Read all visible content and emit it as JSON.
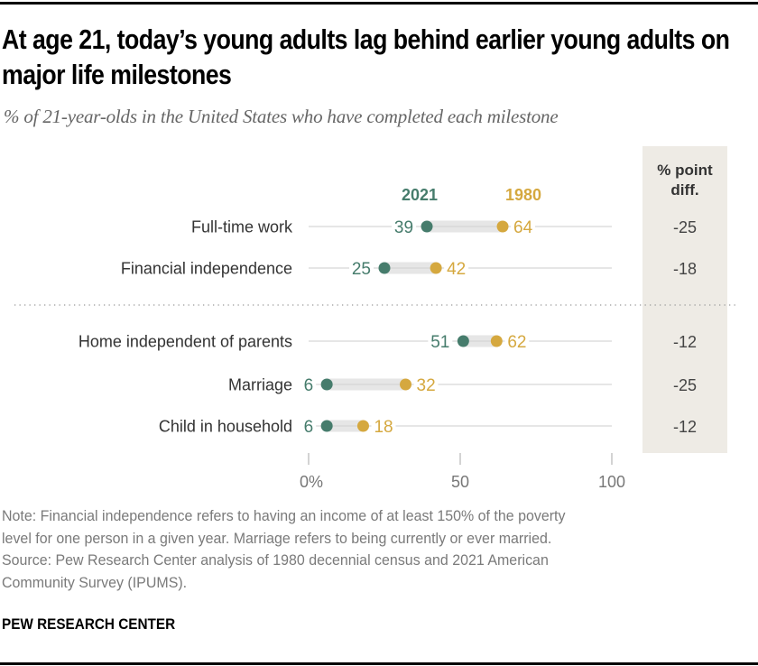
{
  "header": {
    "title": "At age 21, today’s young adults lag behind earlier young adults on major life milestones",
    "subtitle": "% of 21-year-olds in the United States who have completed each milestone"
  },
  "chart_data": {
    "type": "dot-plot",
    "title": "At age 21, today’s young adults lag behind earlier young adults on major life milestones",
    "subtitle": "% of 21-year-olds in the United States who have completed each milestone",
    "xlabel": "",
    "ylabel": "",
    "xlim": [
      0,
      100
    ],
    "x_ticks": [
      0,
      50,
      100
    ],
    "x_tick_labels": [
      "0%",
      "50",
      "100"
    ],
    "grid": false,
    "categories": [
      "Full-time work",
      "Financial independence",
      "Home independent of parents",
      "Marriage",
      "Child in household"
    ],
    "groups": [
      [
        0,
        1
      ],
      [
        2,
        3,
        4
      ]
    ],
    "series": [
      {
        "name": "2021",
        "color": "#467c6c",
        "values": [
          39,
          25,
          51,
          6,
          6
        ]
      },
      {
        "name": "1980",
        "color": "#d5a83f",
        "values": [
          64,
          42,
          62,
          32,
          18
        ]
      }
    ],
    "diff_column": {
      "header": [
        "% point",
        "diff."
      ],
      "values": [
        "-25",
        "-18",
        "-12",
        "-25",
        "-12"
      ],
      "background": "#eeebe5"
    },
    "legend": {
      "placement": "top-inline",
      "entries": [
        "2021",
        "1980"
      ]
    }
  },
  "footer": {
    "note_lines": [
      "Note: Financial independence refers to having an income of at least 150% of the poverty",
      "level for one person in a given year. Marriage refers to being currently or ever married.",
      "Source: Pew Research Center analysis of 1980 decennial census and 2021 American",
      "Community Survey (IPUMS)."
    ],
    "brand": "PEW RESEARCH CENTER"
  }
}
